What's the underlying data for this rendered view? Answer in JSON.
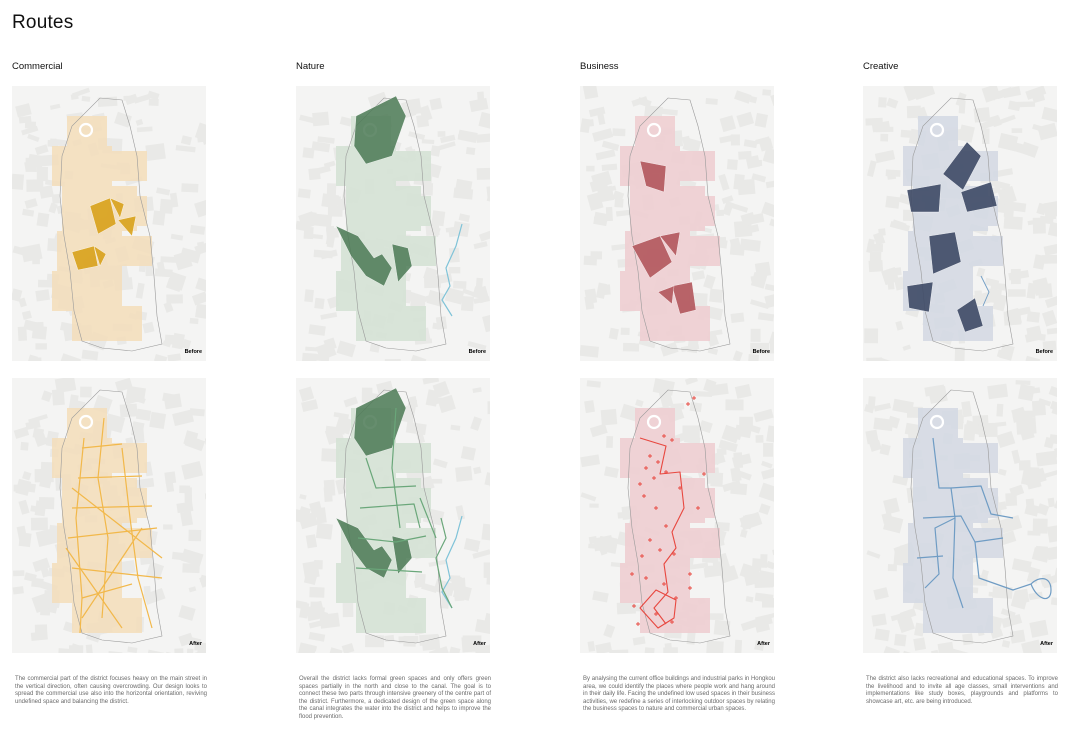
{
  "page": {
    "title": "Routes"
  },
  "panels": [
    {
      "id": "commercial",
      "title": "Commercial",
      "before_label": "Before",
      "after_label": "After",
      "description": "The commercial part of the district focuses heavy on the main street in the vertical direction, often causing overcrowding. Our design looks to spread the commercial use also into the horizontal orientation, reviving undefined space and balancing the district.",
      "colors": {
        "zone": "#f4dfbd",
        "highlight": "#d9a21b",
        "route": "#f2b84a"
      }
    },
    {
      "id": "nature",
      "title": "Nature",
      "before_label": "Before",
      "after_label": "After",
      "description": "Overall the district lacks formal green spaces and only offers green spaces partially in the north and close to the canal. The goal is to connect these two parts through intensive greenery of the centre part of the district. Furthermore, a dedicated design of the green space along the canal integrates the water into the district and helps to improve the flood prevention.",
      "colors": {
        "zone": "#d6e3d6",
        "highlight": "#4c7a55",
        "route": "#6aa77a",
        "water": "#7fc3d8"
      }
    },
    {
      "id": "business",
      "title": "Business",
      "before_label": "Before",
      "after_label": "After",
      "description": "By analysing the current office buildings and industrial parks in Hongkou area, we could identify the places where people work and hang around in their daily life. Facing the undefined low used spaces in their business activities, we redefine a series of interlocking outdoor spaces by relating the business spaces to nature and commercial urban spaces.",
      "colors": {
        "zone": "#efcfd2",
        "highlight": "#b3575d",
        "route": "#e8473f",
        "marker": "#e8473f"
      }
    },
    {
      "id": "creative",
      "title": "Creative",
      "before_label": "Before",
      "after_label": "After",
      "description": "The district also lacks recreational and educational spaces. To improve the livelihood and to invite all age classes, small interventions and implementations like study boxes, playgrounds and platforms to showcase art, etc. are being introduced.",
      "colors": {
        "zone": "#d5dae4",
        "highlight": "#3e4a66",
        "route": "#6f9cc4"
      }
    }
  ]
}
